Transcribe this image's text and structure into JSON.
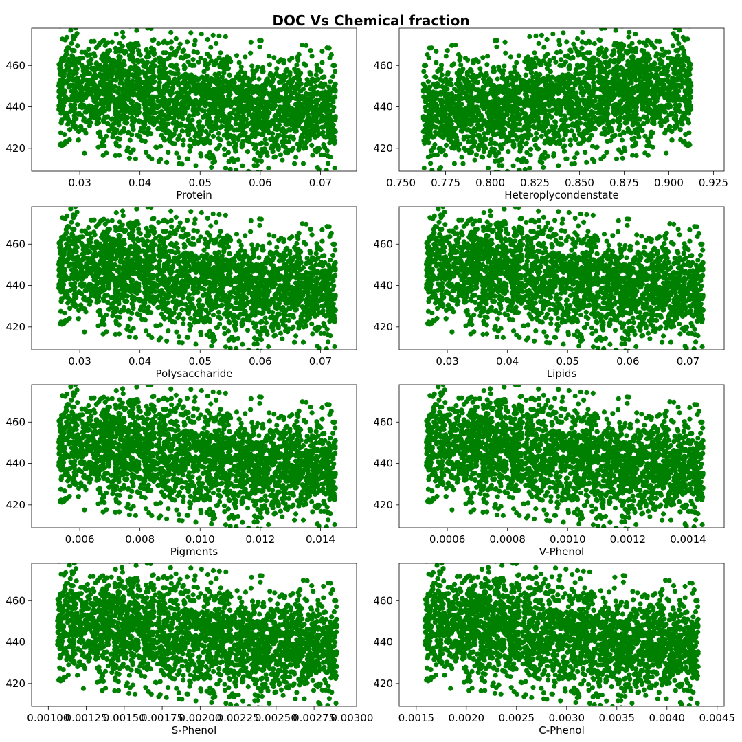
{
  "figure": {
    "title": "DOC Vs Chemical fraction"
  },
  "chart_data": [
    {
      "type": "scatter",
      "xlabel": "Protein",
      "ylabel": "",
      "xlim": [
        0.022,
        0.076
      ],
      "ylim": [
        409,
        478
      ],
      "xticks": [
        0.03,
        0.04,
        0.05,
        0.06,
        0.07
      ],
      "xtick_labels": [
        "0.03",
        "0.04",
        "0.05",
        "0.06",
        "0.07"
      ],
      "yticks": [
        420,
        440,
        460
      ],
      "ytick_labels": [
        "420",
        "440",
        "460"
      ],
      "color": "#008000",
      "trend": "negative",
      "x_range": [
        0.0245,
        0.0745
      ],
      "grid": false,
      "legend": "none"
    },
    {
      "type": "scatter",
      "xlabel": "Heteroplycondenstate",
      "ylabel": "",
      "xlim": [
        0.749,
        0.931
      ],
      "ylim": [
        409,
        478
      ],
      "xticks": [
        0.75,
        0.775,
        0.8,
        0.825,
        0.85,
        0.875,
        0.9,
        0.925
      ],
      "xtick_labels": [
        "0.750",
        "0.775",
        "0.800",
        "0.825",
        "0.850",
        "0.875",
        "0.900",
        "0.925"
      ],
      "yticks": [
        420,
        440,
        460
      ],
      "ytick_labels": [
        "420",
        "440",
        "460"
      ],
      "color": "#008000",
      "trend": "positive",
      "x_range": [
        0.756,
        0.919
      ],
      "grid": false,
      "legend": "none"
    },
    {
      "type": "scatter",
      "xlabel": "Polysaccharide",
      "ylabel": "",
      "xlim": [
        0.022,
        0.076
      ],
      "ylim": [
        409,
        478
      ],
      "xticks": [
        0.03,
        0.04,
        0.05,
        0.06,
        0.07
      ],
      "xtick_labels": [
        "0.03",
        "0.04",
        "0.05",
        "0.06",
        "0.07"
      ],
      "yticks": [
        420,
        440,
        460
      ],
      "ytick_labels": [
        "420",
        "440",
        "460"
      ],
      "color": "#008000",
      "trend": "negative",
      "x_range": [
        0.0245,
        0.0745
      ],
      "grid": false,
      "legend": "none"
    },
    {
      "type": "scatter",
      "xlabel": "Lipids",
      "ylabel": "",
      "xlim": [
        0.022,
        0.076
      ],
      "ylim": [
        409,
        478
      ],
      "xticks": [
        0.03,
        0.04,
        0.05,
        0.06,
        0.07
      ],
      "xtick_labels": [
        "0.03",
        "0.04",
        "0.05",
        "0.06",
        "0.07"
      ],
      "yticks": [
        420,
        440,
        460
      ],
      "ytick_labels": [
        "420",
        "440",
        "460"
      ],
      "color": "#008000",
      "trend": "negative",
      "x_range": [
        0.0245,
        0.0745
      ],
      "grid": false,
      "legend": "none"
    },
    {
      "type": "scatter",
      "xlabel": "Pigments",
      "ylabel": "",
      "xlim": [
        0.0044,
        0.0152
      ],
      "ylim": [
        409,
        478
      ],
      "xticks": [
        0.006,
        0.008,
        0.01,
        0.012,
        0.014
      ],
      "xtick_labels": [
        "0.006",
        "0.008",
        "0.010",
        "0.012",
        "0.014"
      ],
      "yticks": [
        420,
        440,
        460
      ],
      "ytick_labels": [
        "420",
        "440",
        "460"
      ],
      "color": "#008000",
      "trend": "negative",
      "x_range": [
        0.0049,
        0.0149
      ],
      "grid": false,
      "legend": "none"
    },
    {
      "type": "scatter",
      "xlabel": "V-Phenol",
      "ylabel": "",
      "xlim": [
        0.00044,
        0.00152
      ],
      "ylim": [
        409,
        478
      ],
      "xticks": [
        0.0006,
        0.0008,
        0.001,
        0.0012,
        0.0014
      ],
      "xtick_labels": [
        "0.0006",
        "0.0008",
        "0.0010",
        "0.0012",
        "0.0014"
      ],
      "yticks": [
        420,
        440,
        460
      ],
      "ytick_labels": [
        "420",
        "440",
        "460"
      ],
      "color": "#008000",
      "trend": "negative",
      "x_range": [
        0.00049,
        0.00149
      ],
      "grid": false,
      "legend": "none"
    },
    {
      "type": "scatter",
      "xlabel": "S-Phenol",
      "ylabel": "",
      "xlim": [
        0.00089,
        0.00303
      ],
      "ylim": [
        409,
        478
      ],
      "xticks": [
        0.001,
        0.00125,
        0.0015,
        0.00175,
        0.002,
        0.00225,
        0.0025,
        0.00275,
        0.003
      ],
      "xtick_labels": [
        "0.00100",
        "0.00125",
        "0.00150",
        "0.00175",
        "0.00200",
        "0.00225",
        "0.00250",
        "0.00275",
        "0.00300"
      ],
      "yticks": [
        420,
        440,
        460
      ],
      "ytick_labels": [
        "420",
        "440",
        "460"
      ],
      "color": "#008000",
      "trend": "negative",
      "x_range": [
        0.00098,
        0.00298
      ],
      "grid": false,
      "legend": "none"
    },
    {
      "type": "scatter",
      "xlabel": "C-Phenol",
      "ylabel": "",
      "xlim": [
        0.00133,
        0.00457
      ],
      "ylim": [
        409,
        478
      ],
      "xticks": [
        0.0015,
        0.002,
        0.0025,
        0.003,
        0.0035,
        0.004,
        0.0045
      ],
      "xtick_labels": [
        "0.0015",
        "0.0020",
        "0.0025",
        "0.0030",
        "0.0035",
        "0.0040",
        "0.0045"
      ],
      "yticks": [
        420,
        440,
        460
      ],
      "ytick_labels": [
        "420",
        "440",
        "460"
      ],
      "color": "#008000",
      "trend": "negative",
      "x_range": [
        0.00147,
        0.00443
      ],
      "grid": false,
      "legend": "none"
    }
  ]
}
